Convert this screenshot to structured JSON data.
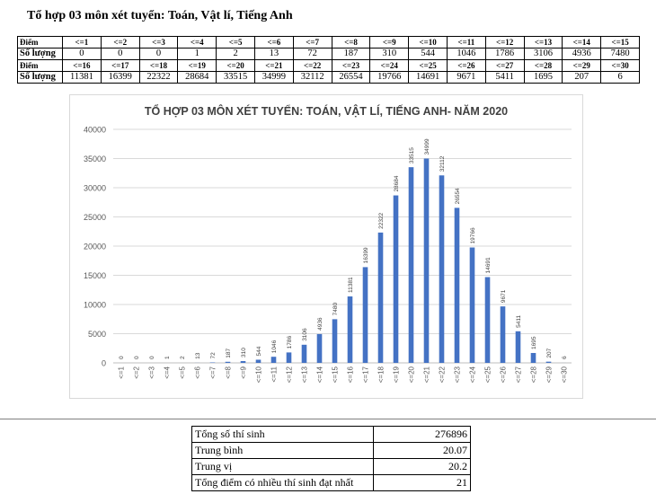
{
  "heading": "Tổ hợp 03 môn xét tuyển: Toán, Vật lí, Tiếng Anh",
  "score_table": {
    "row_label_diem": "Điểm",
    "row_label_so_luong": "Số lượng"
  },
  "chart_data": {
    "type": "bar",
    "title": "TỔ HỢP 03 MÔN XÉT TUYỂN: TOÁN, VẬT LÍ, TIẾNG ANH- NĂM 2020",
    "categories": [
      "<=1",
      "<=2",
      "<=3",
      "<=4",
      "<=5",
      "<=6",
      "<=7",
      "<=8",
      "<=9",
      "<=10",
      "<=11",
      "<=12",
      "<=13",
      "<=14",
      "<=15",
      "<=16",
      "<=17",
      "<=18",
      "<=19",
      "<=20",
      "<=21",
      "<=22",
      "<=23",
      "<=24",
      "<=25",
      "<=26",
      "<=27",
      "<=28",
      "<=29",
      "<=30"
    ],
    "values": [
      0,
      0,
      0,
      1,
      2,
      13,
      72,
      187,
      310,
      544,
      1046,
      1786,
      3106,
      4936,
      7480,
      11381,
      16399,
      22322,
      28684,
      33515,
      34999,
      32112,
      26554,
      19766,
      14691,
      9671,
      5411,
      1695,
      207,
      6
    ],
    "ylim": [
      0,
      40000
    ],
    "yticks": [
      0,
      5000,
      10000,
      15000,
      20000,
      25000,
      30000,
      35000,
      40000
    ],
    "grid": true,
    "data_labels": true,
    "bar_color": "#4472C4"
  },
  "stats": [
    {
      "label": "Tổng số thí sinh",
      "value": "276896"
    },
    {
      "label": "Trung bình",
      "value": "20.07"
    },
    {
      "label": "Trung vị",
      "value": "20.2"
    },
    {
      "label": "Tổng điểm có nhiều thí sinh đạt nhất",
      "value": "21"
    }
  ]
}
